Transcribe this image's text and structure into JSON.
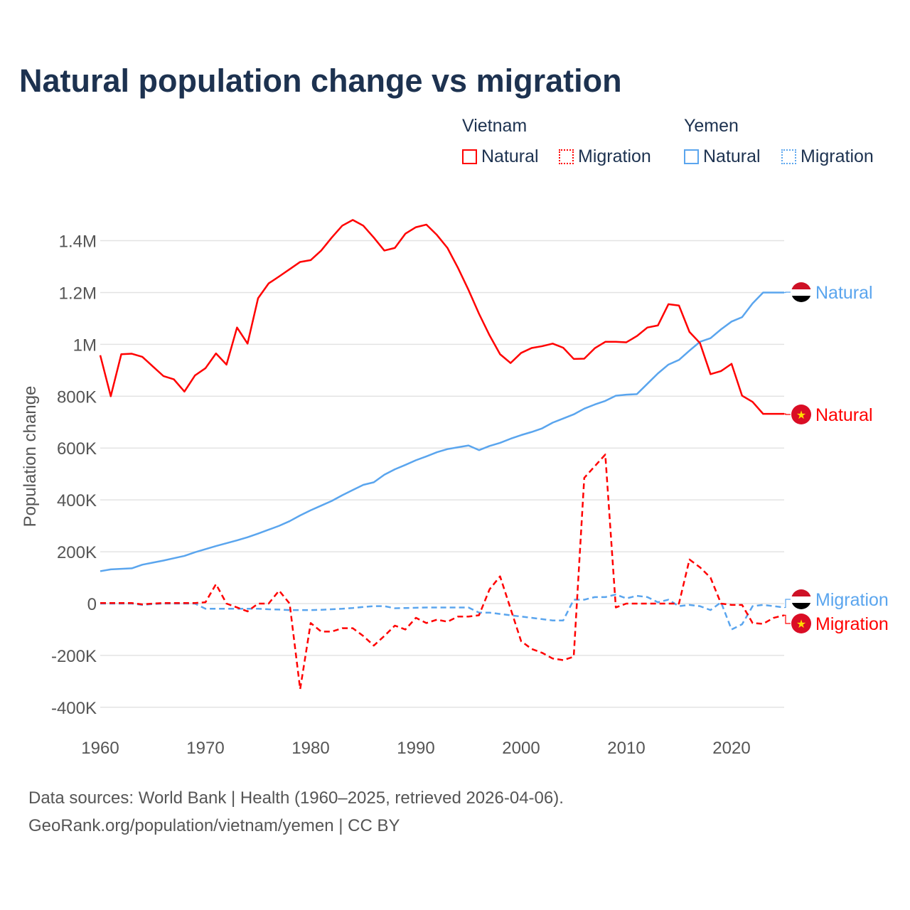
{
  "title": "Natural population change vs migration",
  "legend": {
    "groups": [
      {
        "name": "Vietnam",
        "items": [
          "Natural",
          "Migration"
        ]
      },
      {
        "name": "Yemen",
        "items": [
          "Natural",
          "Migration"
        ]
      }
    ]
  },
  "colors": {
    "vietnam": "#ff0000",
    "yemen": "#5aa5ee"
  },
  "footer": {
    "line1": "Data sources: World Bank | Health (1960–2025, retrieved 2026-04-06).",
    "line2": "GeoRank.org/population/vietnam/yemen | CC BY"
  },
  "chart_data": {
    "type": "line",
    "title": "Natural population change vs migration",
    "ylabel": "Population change",
    "xlabel": "",
    "xlim": [
      1960,
      2025
    ],
    "ylim": [
      -400000,
      1500000
    ],
    "x_ticks": [
      1960,
      1970,
      1980,
      1990,
      2000,
      2010,
      2020
    ],
    "x_tick_labels": [
      "1960",
      "1970",
      "1980",
      "1990",
      "2000",
      "2010",
      "2020"
    ],
    "y_ticks": [
      -400000,
      -200000,
      0,
      200000,
      400000,
      600000,
      800000,
      1000000,
      1200000,
      1400000
    ],
    "y_tick_labels": [
      "-400K",
      "-200K",
      "0",
      "200K",
      "400K",
      "600K",
      "800K",
      "1M",
      "1.2M",
      "1.4M"
    ],
    "grid": true,
    "legend_placement": "top-right",
    "x": [
      1960,
      1961,
      1962,
      1963,
      1964,
      1965,
      1966,
      1967,
      1968,
      1969,
      1970,
      1971,
      1972,
      1973,
      1974,
      1975,
      1976,
      1977,
      1978,
      1979,
      1980,
      1981,
      1982,
      1983,
      1984,
      1985,
      1986,
      1987,
      1988,
      1989,
      1990,
      1991,
      1992,
      1993,
      1994,
      1995,
      1996,
      1997,
      1998,
      1999,
      2000,
      2001,
      2002,
      2003,
      2004,
      2005,
      2006,
      2007,
      2008,
      2009,
      2010,
      2011,
      2012,
      2013,
      2014,
      2015,
      2016,
      2017,
      2018,
      2019,
      2020,
      2021,
      2022,
      2023,
      2024,
      2025
    ],
    "series": [
      {
        "name": "Vietnam Natural",
        "country": "vietnam",
        "dashed": false,
        "end_label": "Natural",
        "values": [
          958000,
          800000,
          962000,
          964000,
          952000,
          915000,
          878000,
          865000,
          818000,
          880000,
          908000,
          965000,
          922000,
          1065000,
          1003000,
          1178000,
          1235000,
          1262000,
          1290000,
          1318000,
          1325000,
          1362000,
          1412000,
          1458000,
          1480000,
          1458000,
          1412000,
          1362000,
          1372000,
          1427000,
          1452000,
          1462000,
          1422000,
          1372000,
          1295000,
          1210000,
          1118000,
          1035000,
          962000,
          928000,
          967000,
          986000,
          993000,
          1003000,
          987000,
          944000,
          945000,
          985000,
          1010000,
          1010000,
          1008000,
          1032000,
          1065000,
          1073000,
          1155000,
          1150000,
          1048000,
          1005000,
          885000,
          897000,
          925000,
          802000,
          778000,
          732000,
          732000,
          732000
        ]
      },
      {
        "name": "Vietnam Migration",
        "country": "vietnam",
        "dashed": true,
        "end_label": "Migration",
        "values": [
          2000,
          2000,
          2000,
          2000,
          -3000,
          0,
          2000,
          2000,
          2000,
          2000,
          5000,
          75000,
          0,
          -15000,
          -30000,
          0,
          0,
          50000,
          0,
          -330000,
          -75000,
          -108000,
          -108000,
          -95000,
          -95000,
          -125000,
          -162000,
          -125000,
          -85000,
          -100000,
          -55000,
          -75000,
          -62000,
          -70000,
          -50000,
          -50000,
          -45000,
          55000,
          105000,
          -20000,
          -145000,
          -175000,
          -190000,
          -212000,
          -218000,
          -205000,
          485000,
          530000,
          575000,
          -15000,
          0,
          0,
          0,
          0,
          0,
          0,
          170000,
          140000,
          100000,
          0,
          -5000,
          -5000,
          -75000,
          -78000,
          -55000,
          -45000
        ]
      },
      {
        "name": "Yemen Natural",
        "country": "yemen",
        "dashed": false,
        "end_label": "Natural",
        "values": [
          125000,
          132000,
          134000,
          136000,
          150000,
          158000,
          166000,
          175000,
          184000,
          198000,
          210000,
          222000,
          233000,
          244000,
          256000,
          270000,
          285000,
          300000,
          318000,
          340000,
          360000,
          378000,
          396000,
          418000,
          438000,
          458000,
          468000,
          497000,
          518000,
          535000,
          553000,
          568000,
          584000,
          596000,
          603000,
          610000,
          592000,
          608000,
          620000,
          636000,
          650000,
          662000,
          676000,
          698000,
          714000,
          730000,
          752000,
          768000,
          782000,
          802000,
          806000,
          808000,
          848000,
          888000,
          922000,
          940000,
          976000,
          1010000,
          1024000,
          1058000,
          1088000,
          1105000,
          1158000,
          1200000,
          1200000,
          1200000
        ]
      },
      {
        "name": "Yemen Migration",
        "country": "yemen",
        "dashed": true,
        "end_label": "Migration",
        "values": [
          0,
          0,
          0,
          0,
          -5000,
          -2000,
          0,
          0,
          0,
          0,
          -20000,
          -20000,
          -20000,
          -20000,
          -20000,
          -20000,
          -22000,
          -23000,
          -25000,
          -25000,
          -25000,
          -24000,
          -22000,
          -20000,
          -17000,
          -13000,
          -10000,
          -10000,
          -18000,
          -17000,
          -16000,
          -15000,
          -15000,
          -15000,
          -15000,
          -15000,
          -35000,
          -35000,
          -40000,
          -45000,
          -50000,
          -55000,
          -60000,
          -65000,
          -65000,
          15000,
          15000,
          25000,
          25000,
          35000,
          20000,
          30000,
          25000,
          5000,
          15000,
          -10000,
          -5000,
          -10000,
          -25000,
          5000,
          -100000,
          -80000,
          -10000,
          -5000,
          -10000,
          -15000
        ]
      }
    ]
  }
}
